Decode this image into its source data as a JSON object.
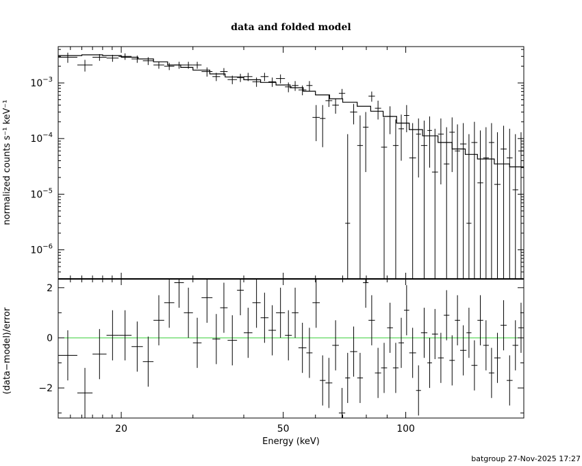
{
  "footer": "batgroup 27-Nov-2025 17:27",
  "chart_data": {
    "type": "scatter",
    "title": "data and folded model",
    "xlabel": "Energy (keV)",
    "x_scale": "log",
    "xlim": [
      14,
      195
    ],
    "x_ticks": [
      20,
      50,
      100
    ],
    "top": {
      "ylabel": "normalized counts s⁻¹ keV⁻¹",
      "y_scale": "log",
      "ylim": [
        3e-07,
        0.0045
      ],
      "y_ticks": [
        {
          "value": 1e-06,
          "mant": "10",
          "exp": "−6"
        },
        {
          "value": 1e-05,
          "mant": "10",
          "exp": "−5"
        },
        {
          "value": 0.0001,
          "mant": "10",
          "exp": "−4"
        },
        {
          "value": 0.001,
          "mant": "10",
          "exp": "−3"
        }
      ],
      "model_color": "#000000",
      "data": [
        {
          "xlo": 14,
          "xhi": 15.6,
          "y": 0.0029,
          "ylo": 0.0023,
          "yhi": 0.0035
        },
        {
          "xlo": 15.6,
          "xhi": 17,
          "y": 0.0021,
          "ylo": 0.0016,
          "yhi": 0.0026
        },
        {
          "xlo": 17,
          "xhi": 18.4,
          "y": 0.0029,
          "ylo": 0.0025,
          "yhi": 0.0033
        },
        {
          "xlo": 18.4,
          "xhi": 19.7,
          "y": 0.0028,
          "ylo": 0.0024,
          "yhi": 0.0032
        },
        {
          "xlo": 19.7,
          "xhi": 21.2,
          "y": 0.003,
          "ylo": 0.0026,
          "yhi": 0.0034
        },
        {
          "xlo": 21.2,
          "xhi": 22.6,
          "y": 0.0027,
          "ylo": 0.0023,
          "yhi": 0.0031
        },
        {
          "xlo": 22.6,
          "xhi": 24,
          "y": 0.0025,
          "ylo": 0.0021,
          "yhi": 0.0029
        },
        {
          "xlo": 24,
          "xhi": 25.5,
          "y": 0.0021,
          "ylo": 0.0018,
          "yhi": 0.0024
        },
        {
          "xlo": 25.5,
          "xhi": 27,
          "y": 0.002,
          "ylo": 0.0017,
          "yhi": 0.0023
        },
        {
          "xlo": 27,
          "xhi": 28.5,
          "y": 0.0021,
          "ylo": 0.0018,
          "yhi": 0.0024
        },
        {
          "xlo": 28.5,
          "xhi": 30,
          "y": 0.0021,
          "ylo": 0.0018,
          "yhi": 0.0024
        },
        {
          "xlo": 30,
          "xhi": 31.5,
          "y": 0.0021,
          "ylo": 0.0018,
          "yhi": 0.0024
        },
        {
          "xlo": 31.5,
          "xhi": 33.5,
          "y": 0.0016,
          "ylo": 0.0013,
          "yhi": 0.0019
        },
        {
          "xlo": 33.5,
          "xhi": 35,
          "y": 0.0013,
          "ylo": 0.00108,
          "yhi": 0.00152
        },
        {
          "xlo": 35,
          "xhi": 36.5,
          "y": 0.0016,
          "ylo": 0.00135,
          "yhi": 0.00185
        },
        {
          "xlo": 36.5,
          "xhi": 38.5,
          "y": 0.00115,
          "ylo": 0.00095,
          "yhi": 0.00135
        },
        {
          "xlo": 38.5,
          "xhi": 40,
          "y": 0.00125,
          "ylo": 0.00104,
          "yhi": 0.00146
        },
        {
          "xlo": 40,
          "xhi": 42,
          "y": 0.0013,
          "ylo": 0.00108,
          "yhi": 0.00152
        },
        {
          "xlo": 42,
          "xhi": 44,
          "y": 0.00105,
          "ylo": 0.00085,
          "yhi": 0.00125
        },
        {
          "xlo": 44,
          "xhi": 46,
          "y": 0.0013,
          "ylo": 0.00108,
          "yhi": 0.00152
        },
        {
          "xlo": 46,
          "xhi": 48,
          "y": 0.00105,
          "ylo": 0.00085,
          "yhi": 0.00125
        },
        {
          "xlo": 48,
          "xhi": 50.5,
          "y": 0.0012,
          "ylo": 0.00098,
          "yhi": 0.00142
        },
        {
          "xlo": 50.5,
          "xhi": 52.5,
          "y": 0.00085,
          "ylo": 0.00068,
          "yhi": 0.00102
        },
        {
          "xlo": 52.5,
          "xhi": 54.5,
          "y": 0.0009,
          "ylo": 0.00072,
          "yhi": 0.00108
        },
        {
          "xlo": 54.5,
          "xhi": 57,
          "y": 0.00075,
          "ylo": 0.0006,
          "yhi": 0.0009
        },
        {
          "xlo": 57,
          "xhi": 59,
          "y": 0.0009,
          "ylo": 0.00072,
          "yhi": 0.00108
        },
        {
          "xlo": 59,
          "xhi": 61.5,
          "y": 0.00024,
          "ylo": 9e-05,
          "yhi": 0.0004
        },
        {
          "xlo": 61.5,
          "xhi": 63.5,
          "y": 0.00023,
          "ylo": 7e-05,
          "yhi": 0.0004
        },
        {
          "xlo": 63.5,
          "xhi": 66,
          "y": 0.00048,
          "ylo": 0.00037,
          "yhi": 0.0006
        },
        {
          "xlo": 66,
          "xhi": 68.5,
          "y": 0.0004,
          "ylo": 0.00028,
          "yhi": 0.00052
        },
        {
          "xlo": 68.5,
          "xhi": 71,
          "y": 0.00065,
          "ylo": 0.00052,
          "yhi": 0.00078
        },
        {
          "xlo": 71,
          "xhi": 73,
          "y": 3e-06,
          "ylo": 3e-07,
          "yhi": 0.00012
        },
        {
          "xlo": 73,
          "xhi": 76,
          "y": 0.0003,
          "ylo": 0.00018,
          "yhi": 0.00042
        },
        {
          "xlo": 76,
          "xhi": 78.5,
          "y": 7.5e-05,
          "ylo": 3e-07,
          "yhi": 0.00026
        },
        {
          "xlo": 78.5,
          "xhi": 81,
          "y": 0.00016,
          "ylo": 2.5e-05,
          "yhi": 0.0003
        },
        {
          "xlo": 81,
          "xhi": 84,
          "y": 0.00058,
          "ylo": 0.00046,
          "yhi": 0.0007
        },
        {
          "xlo": 84,
          "xhi": 87,
          "y": 0.00035,
          "ylo": 0.00022,
          "yhi": 0.00048
        },
        {
          "xlo": 87,
          "xhi": 90,
          "y": 7e-05,
          "ylo": 3e-07,
          "yhi": 0.00024
        },
        {
          "xlo": 90,
          "xhi": 93,
          "y": 0.00025,
          "ylo": 0.00012,
          "yhi": 0.00038
        },
        {
          "xlo": 93,
          "xhi": 96,
          "y": 7.5e-05,
          "ylo": 3e-07,
          "yhi": 0.00022
        },
        {
          "xlo": 96,
          "xhi": 99,
          "y": 0.00015,
          "ylo": 4e-05,
          "yhi": 0.00027
        },
        {
          "xlo": 99,
          "xhi": 102,
          "y": 0.00026,
          "ylo": 0.00013,
          "yhi": 0.0004
        },
        {
          "xlo": 102,
          "xhi": 106,
          "y": 4.5e-05,
          "ylo": 3e-07,
          "yhi": 0.00019
        },
        {
          "xlo": 106,
          "xhi": 109,
          "y": 0.00012,
          "ylo": 2e-05,
          "yhi": 0.00023
        },
        {
          "xlo": 109,
          "xhi": 113,
          "y": 7.5e-05,
          "ylo": 3e-07,
          "yhi": 0.00021
        },
        {
          "xlo": 113,
          "xhi": 116,
          "y": 0.00014,
          "ylo": 3e-05,
          "yhi": 0.00025
        },
        {
          "xlo": 116,
          "xhi": 120,
          "y": 2.5e-05,
          "ylo": 3e-07,
          "yhi": 0.00015
        },
        {
          "xlo": 120,
          "xhi": 124,
          "y": 0.00012,
          "ylo": 1.5e-05,
          "yhi": 0.00023
        },
        {
          "xlo": 124,
          "xhi": 128,
          "y": 3.5e-05,
          "ylo": 3e-07,
          "yhi": 0.00016
        },
        {
          "xlo": 128,
          "xhi": 132,
          "y": 0.00013,
          "ylo": 2.5e-05,
          "yhi": 0.00024
        },
        {
          "xlo": 132,
          "xhi": 136,
          "y": 6e-05,
          "ylo": 3e-07,
          "yhi": 0.00018
        },
        {
          "xlo": 136,
          "xhi": 141,
          "y": 8e-05,
          "ylo": 3e-07,
          "yhi": 0.00019
        },
        {
          "xlo": 141,
          "xhi": 145,
          "y": 3e-06,
          "ylo": 3e-07,
          "yhi": 0.00012
        },
        {
          "xlo": 145,
          "xhi": 150,
          "y": 8.5e-05,
          "ylo": 3e-07,
          "yhi": 0.0002
        },
        {
          "xlo": 150,
          "xhi": 155,
          "y": 1.6e-05,
          "ylo": 3e-07,
          "yhi": 0.00014
        },
        {
          "xlo": 155,
          "xhi": 160,
          "y": 4.5e-05,
          "ylo": 3e-07,
          "yhi": 0.00016
        },
        {
          "xlo": 160,
          "xhi": 165,
          "y": 8.5e-05,
          "ylo": 3e-07,
          "yhi": 0.00019
        },
        {
          "xlo": 165,
          "xhi": 171,
          "y": 1.5e-05,
          "ylo": 3e-07,
          "yhi": 0.00013
        },
        {
          "xlo": 171,
          "xhi": 177,
          "y": 6.5e-05,
          "ylo": 3e-07,
          "yhi": 0.00017
        },
        {
          "xlo": 177,
          "xhi": 183,
          "y": 4.5e-05,
          "ylo": 3e-07,
          "yhi": 0.00015
        },
        {
          "xlo": 183,
          "xhi": 189,
          "y": 1.2e-05,
          "ylo": 3e-07,
          "yhi": 0.00012
        },
        {
          "xlo": 189,
          "xhi": 195,
          "y": 6e-05,
          "ylo": 3e-07,
          "yhi": 0.00013
        }
      ],
      "model": [
        [
          14,
          0.0031
        ],
        [
          16,
          0.0032
        ],
        [
          18,
          0.0031
        ],
        [
          20,
          0.0029
        ],
        [
          22,
          0.0027
        ],
        [
          24,
          0.0024
        ],
        [
          26,
          0.0021
        ],
        [
          28,
          0.0019
        ],
        [
          30,
          0.0017
        ],
        [
          33,
          0.00145
        ],
        [
          36,
          0.00128
        ],
        [
          40,
          0.00114
        ],
        [
          44,
          0.00102
        ],
        [
          48,
          0.00092
        ],
        [
          52,
          0.00082
        ],
        [
          56,
          0.00071
        ],
        [
          60,
          0.00061
        ],
        [
          65,
          0.00052
        ],
        [
          70,
          0.00045
        ],
        [
          76,
          0.00038
        ],
        [
          82,
          0.00031
        ],
        [
          88,
          0.00025
        ],
        [
          95,
          0.00019
        ],
        [
          102,
          0.000145
        ],
        [
          110,
          0.000112
        ],
        [
          120,
          8.5e-05
        ],
        [
          130,
          6.5e-05
        ],
        [
          140,
          5.2e-05
        ],
        [
          150,
          4.3e-05
        ],
        [
          165,
          3.5e-05
        ],
        [
          180,
          3.1e-05
        ],
        [
          195,
          2.7e-05
        ]
      ]
    },
    "bottom": {
      "ylabel": "(data−model)/error",
      "ylim": [
        -3.2,
        2.35
      ],
      "y_ticks": [
        -2,
        0,
        2
      ],
      "y_tick_labels": [
        "−2",
        "0",
        "2"
      ],
      "zero_line_color": "#33cc33",
      "residuals": [
        {
          "xlo": 14,
          "xhi": 15.6,
          "y": -0.7
        },
        {
          "xlo": 15.6,
          "xhi": 17,
          "y": -2.2
        },
        {
          "xlo": 17,
          "xhi": 18.4,
          "y": -0.65
        },
        {
          "xlo": 18.4,
          "xhi": 19.7,
          "y": 0.1
        },
        {
          "xlo": 19.7,
          "xhi": 21.2,
          "y": 0.1
        },
        {
          "xlo": 21.2,
          "xhi": 22.6,
          "y": -0.35
        },
        {
          "xlo": 22.6,
          "xhi": 24,
          "y": -0.95
        },
        {
          "xlo": 24,
          "xhi": 25.5,
          "y": 0.7
        },
        {
          "xlo": 25.5,
          "xhi": 27,
          "y": 1.4
        },
        {
          "xlo": 27,
          "xhi": 28.5,
          "y": 2.2
        },
        {
          "xlo": 28.5,
          "xhi": 30,
          "y": 1.0
        },
        {
          "xlo": 30,
          "xhi": 31.5,
          "y": -0.2
        },
        {
          "xlo": 31.5,
          "xhi": 33.5,
          "y": 1.6
        },
        {
          "xlo": 33.5,
          "xhi": 35,
          "y": -0.05
        },
        {
          "xlo": 35,
          "xhi": 36.5,
          "y": 1.2
        },
        {
          "xlo": 36.5,
          "xhi": 38.5,
          "y": -0.1
        },
        {
          "xlo": 38.5,
          "xhi": 40,
          "y": 1.9
        },
        {
          "xlo": 40,
          "xhi": 42,
          "y": 0.2
        },
        {
          "xlo": 42,
          "xhi": 44,
          "y": 1.4
        },
        {
          "xlo": 44,
          "xhi": 46,
          "y": 0.8
        },
        {
          "xlo": 46,
          "xhi": 48,
          "y": 0.3
        },
        {
          "xlo": 48,
          "xhi": 50.5,
          "y": 1.0
        },
        {
          "xlo": 50.5,
          "xhi": 52.5,
          "y": 0.1
        },
        {
          "xlo": 52.5,
          "xhi": 54.5,
          "y": 1.0
        },
        {
          "xlo": 54.5,
          "xhi": 57,
          "y": -0.4
        },
        {
          "xlo": 57,
          "xhi": 59,
          "y": -0.6
        },
        {
          "xlo": 59,
          "xhi": 61.5,
          "y": 1.4
        },
        {
          "xlo": 61.5,
          "xhi": 63.5,
          "y": -1.7
        },
        {
          "xlo": 63.5,
          "xhi": 66,
          "y": -1.8
        },
        {
          "xlo": 66,
          "xhi": 68.5,
          "y": -0.3
        },
        {
          "xlo": 68.5,
          "xhi": 71,
          "y": -3.0
        },
        {
          "xlo": 71,
          "xhi": 73,
          "y": -1.6
        },
        {
          "xlo": 73,
          "xhi": 76,
          "y": -0.55
        },
        {
          "xlo": 76,
          "xhi": 78.5,
          "y": -1.6
        },
        {
          "xlo": 78.5,
          "xhi": 81,
          "y": 2.2
        },
        {
          "xlo": 81,
          "xhi": 84,
          "y": 0.7
        },
        {
          "xlo": 84,
          "xhi": 87,
          "y": -1.4
        },
        {
          "xlo": 87,
          "xhi": 90,
          "y": -1.2
        },
        {
          "xlo": 90,
          "xhi": 93,
          "y": 0.4
        },
        {
          "xlo": 93,
          "xhi": 96,
          "y": -1.2
        },
        {
          "xlo": 96,
          "xhi": 99,
          "y": -0.2
        },
        {
          "xlo": 99,
          "xhi": 102,
          "y": 1.1
        },
        {
          "xlo": 102,
          "xhi": 106,
          "y": -0.6
        },
        {
          "xlo": 106,
          "xhi": 109,
          "y": -2.1
        },
        {
          "xlo": 109,
          "xhi": 113,
          "y": 0.2
        },
        {
          "xlo": 113,
          "xhi": 116,
          "y": -1.0
        },
        {
          "xlo": 116,
          "xhi": 120,
          "y": 0.15
        },
        {
          "xlo": 120,
          "xhi": 124,
          "y": -0.8
        },
        {
          "xlo": 124,
          "xhi": 128,
          "y": 0.9
        },
        {
          "xlo": 128,
          "xhi": 132,
          "y": -0.9
        },
        {
          "xlo": 132,
          "xhi": 136,
          "y": 0.7
        },
        {
          "xlo": 136,
          "xhi": 141,
          "y": -0.5
        },
        {
          "xlo": 141,
          "xhi": 145,
          "y": 0.2
        },
        {
          "xlo": 145,
          "xhi": 150,
          "y": -1.1
        },
        {
          "xlo": 150,
          "xhi": 155,
          "y": 0.7
        },
        {
          "xlo": 155,
          "xhi": 160,
          "y": -0.3
        },
        {
          "xlo": 160,
          "xhi": 165,
          "y": -1.4
        },
        {
          "xlo": 165,
          "xhi": 171,
          "y": -0.8
        },
        {
          "xlo": 171,
          "xhi": 177,
          "y": 0.5
        },
        {
          "xlo": 177,
          "xhi": 183,
          "y": -1.7
        },
        {
          "xlo": 183,
          "xhi": 189,
          "y": -0.3
        },
        {
          "xlo": 189,
          "xhi": 195,
          "y": 0.4
        }
      ]
    }
  }
}
